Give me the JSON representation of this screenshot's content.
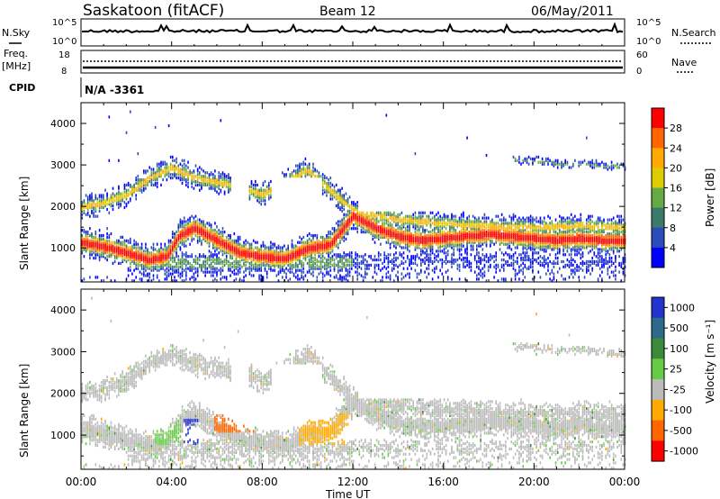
{
  "header": {
    "station": "Saskatoon (fitACF)",
    "beam": "Beam 12",
    "date": "06/May/2011"
  },
  "top_panels": {
    "nsky_label": "N.Sky",
    "nsky_ticks": [
      "10^5",
      "10^0"
    ],
    "nsearch_label": "N.Search",
    "nsearch_ticks": [
      "10^5",
      "10^0"
    ],
    "freq_label": "Freq.",
    "freq_unit": "[MHz]",
    "freq_ticks": [
      "18",
      "8"
    ],
    "nave_label": "Nave",
    "nave_ticks": [
      "60",
      "0"
    ],
    "cpid_label": "CPID",
    "cpid_value": "N/A -3361"
  },
  "chart_data": [
    {
      "type": "heatmap",
      "name": "power",
      "ylabel": "Slant Range [km]",
      "yticks": [
        "4000",
        "3000",
        "2000",
        "1000"
      ],
      "ylim": [
        180,
        4500
      ],
      "xlim_hours": [
        0,
        24
      ],
      "colorbar_label": "Power [dB]",
      "colorbar_ticks": [
        "28",
        "24",
        "20",
        "16",
        "12",
        "8",
        "4"
      ],
      "colors": [
        "#ff0000",
        "#ff6600",
        "#ffaa00",
        "#ddcc00",
        "#66aa44",
        "#3a7a6a",
        "#2a4cb8",
        "#0000ff"
      ],
      "bands": [
        {
          "name": "main-echo",
          "track": [
            [
              0,
              1150
            ],
            [
              1,
              1050
            ],
            [
              2,
              900
            ],
            [
              3,
              720
            ],
            [
              3.8,
              820
            ],
            [
              4.3,
              1300
            ],
            [
              5,
              1500
            ],
            [
              6,
              1200
            ],
            [
              7,
              900
            ],
            [
              8,
              800
            ],
            [
              9,
              760
            ],
            [
              10,
              1000
            ],
            [
              11,
              1100
            ],
            [
              12,
              1800
            ],
            [
              13,
              1500
            ],
            [
              14,
              1300
            ],
            [
              15,
              1200
            ],
            [
              16,
              1250
            ],
            [
              17,
              1300
            ],
            [
              18,
              1350
            ],
            [
              19,
              1300
            ],
            [
              20,
              1250
            ],
            [
              21,
              1200
            ],
            [
              22,
              1250
            ],
            [
              23,
              1200
            ],
            [
              24,
              1200
            ]
          ]
        },
        {
          "name": "upper-echo",
          "track": [
            [
              0,
              2000
            ],
            [
              1,
              2100
            ],
            [
              2,
              2300
            ],
            [
              3,
              2700
            ],
            [
              4,
              2950
            ],
            [
              5,
              2700
            ],
            [
              6,
              2600
            ],
            [
              7,
              2500
            ],
            [
              8,
              2300
            ],
            [
              9,
              2600
            ],
            [
              10,
              2900
            ],
            [
              11,
              2400
            ],
            [
              12,
              1900
            ],
            [
              14,
              1700
            ],
            [
              16,
              1600
            ],
            [
              18,
              1550
            ],
            [
              20,
              1500
            ],
            [
              22,
              1550
            ],
            [
              24,
              1500
            ]
          ]
        },
        {
          "name": "far-echo",
          "track": [
            [
              19,
              3150
            ],
            [
              20,
              3100
            ],
            [
              21,
              3050
            ],
            [
              22,
              3050
            ],
            [
              23,
              3000
            ],
            [
              24,
              2950
            ]
          ]
        }
      ]
    },
    {
      "type": "heatmap",
      "name": "velocity",
      "ylabel": "Slant Range [km]",
      "yticks": [
        "4000",
        "3000",
        "2000",
        "1000"
      ],
      "ylim": [
        180,
        4500
      ],
      "xlim_hours": [
        0,
        24
      ],
      "xticks": [
        "00:00",
        "04:00",
        "08:00",
        "12:00",
        "16:00",
        "20:00",
        "00:00"
      ],
      "xlabel": "Time UT",
      "colorbar_label": "Velocity [m s⁻¹]",
      "colorbar_ticks": [
        "1000",
        "500",
        "100",
        "25",
        "-25",
        "-100",
        "-500",
        "-1000"
      ],
      "colors": [
        "#2233cc",
        "#2a6a8a",
        "#3a8a3a",
        "#66cc44",
        "#bbbbbb",
        "#ffaa00",
        "#ff6600",
        "#ff0000"
      ],
      "hotspots": [
        {
          "hours": [
            4.5,
            5.2
          ],
          "range_km": [
            800,
            1400
          ],
          "color": "#2233cc"
        },
        {
          "hours": [
            5.8,
            7.6
          ],
          "range_km": [
            1100,
            1700
          ],
          "color": "#ff6600"
        },
        {
          "hours": [
            9.6,
            11.8
          ],
          "range_km": [
            800,
            1600
          ],
          "color": "#ffaa00"
        },
        {
          "hours": [
            3.2,
            4.4
          ],
          "range_km": [
            800,
            1300
          ],
          "color": "#66cc44"
        }
      ]
    }
  ]
}
